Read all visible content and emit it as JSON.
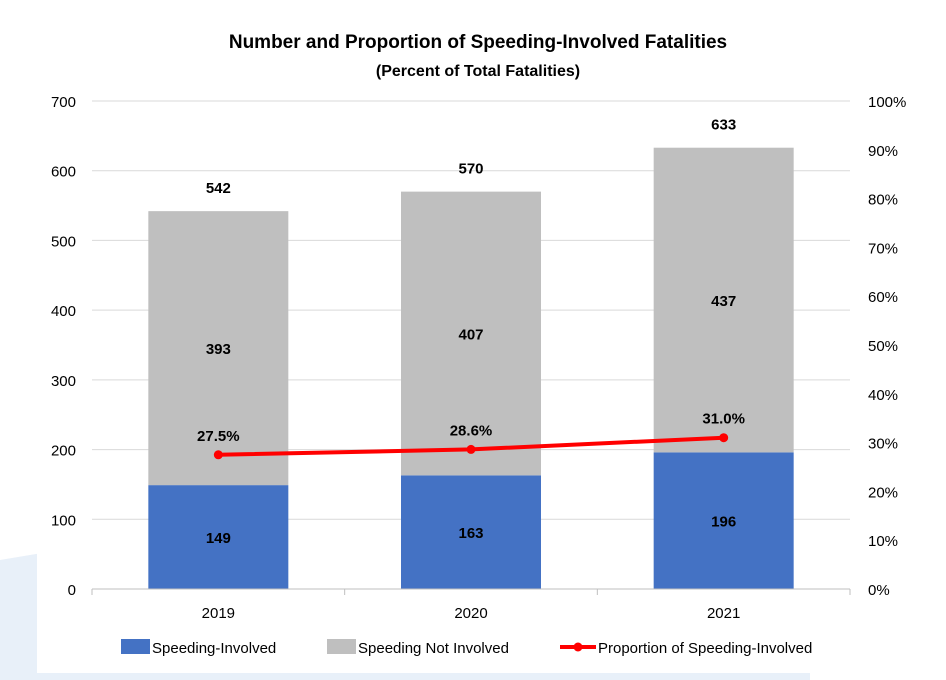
{
  "chart_data": {
    "type": "bar",
    "stacked": true,
    "title": "Number and Proportion of Speeding-Involved Fatalities",
    "subtitle": "(Percent of Total Fatalities)",
    "categories": [
      "2019",
      "2020",
      "2021"
    ],
    "series": [
      {
        "name": "Speeding-Involved",
        "values": [
          149,
          163,
          196
        ],
        "color": "#4472C4",
        "axis": "left"
      },
      {
        "name": "Speeding Not Involved",
        "values": [
          393,
          407,
          437
        ],
        "color": "#BFBFBF",
        "axis": "left"
      },
      {
        "name": "Proportion of Speeding-Involved",
        "type": "line",
        "values": [
          27.5,
          28.6,
          31.0
        ],
        "labels": [
          "27.5%",
          "28.6%",
          "31.0%"
        ],
        "color": "#FF0000",
        "axis": "right"
      }
    ],
    "totals": [
      542,
      570,
      633
    ],
    "ylim": [
      0,
      700
    ],
    "yticks": [
      "0",
      "100",
      "200",
      "300",
      "400",
      "500",
      "600",
      "700"
    ],
    "y2lim": [
      0,
      100
    ],
    "y2ticks": [
      "0%",
      "10%",
      "20%",
      "30%",
      "40%",
      "50%",
      "60%",
      "70%",
      "80%",
      "90%",
      "100%"
    ],
    "grid": true,
    "legend": "bottom"
  }
}
